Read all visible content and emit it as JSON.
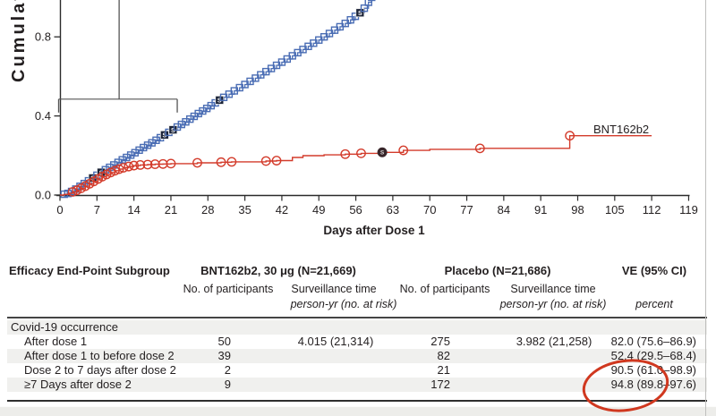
{
  "colors": {
    "placebo_blue": "#4a6db4",
    "placebo_blue_dark": "#2d4f92",
    "bnt_red": "#d33b2b",
    "annotation_red": "#d0381f",
    "severe_navy": "#1c2438",
    "severe_maroon": "#38262a",
    "stripe_gray": "#f0f0ee",
    "text_dark": "#231f20",
    "axis_dark": "#2b2b2b",
    "callout_gray": "#555555"
  },
  "chart_data": {
    "type": "line",
    "xlabel": "Days after Dose 1",
    "ylabel": "Cumulative Incidence (%)",
    "xlim": [
      0,
      119
    ],
    "ylim_visible": [
      0.0,
      0.98
    ],
    "x_ticks": [
      0,
      7,
      14,
      21,
      28,
      35,
      42,
      49,
      56,
      63,
      70,
      77,
      84,
      91,
      98,
      105,
      112,
      119
    ],
    "y_ticks": [
      0.0,
      0.4,
      0.8
    ],
    "grid": false,
    "legend_position": "inline-right",
    "severe_marker_symbol": "S",
    "inset_callout": {
      "x_range_days": [
        0,
        22.2
      ],
      "connector_day": 11.2,
      "bracket_value": 0.485
    },
    "series": [
      {
        "name": "Placebo",
        "marker": "square",
        "style": "step-after",
        "points": [
          [
            0.8,
            0.004
          ],
          [
            1.5,
            0.008
          ],
          [
            2.2,
            0.018
          ],
          [
            3.0,
            0.03
          ],
          [
            3.8,
            0.044
          ],
          [
            4.6,
            0.058
          ],
          [
            5.4,
            0.072
          ],
          [
            6.2,
            0.086,
            1
          ],
          [
            7.0,
            0.1
          ],
          [
            7.8,
            0.115,
            1
          ],
          [
            8.6,
            0.128
          ],
          [
            9.4,
            0.14
          ],
          [
            10.2,
            0.152
          ],
          [
            11.0,
            0.165
          ],
          [
            11.8,
            0.178
          ],
          [
            12.6,
            0.19
          ],
          [
            13.4,
            0.202
          ],
          [
            14.2,
            0.214
          ],
          [
            15.0,
            0.227
          ],
          [
            15.8,
            0.24
          ],
          [
            16.6,
            0.252
          ],
          [
            17.4,
            0.264
          ],
          [
            18.2,
            0.277
          ],
          [
            19.0,
            0.29
          ],
          [
            19.8,
            0.304,
            1
          ],
          [
            20.6,
            0.317
          ],
          [
            21.4,
            0.33,
            1
          ],
          [
            22.2,
            0.344
          ],
          [
            23.0,
            0.357
          ],
          [
            23.8,
            0.37
          ],
          [
            24.6,
            0.384
          ],
          [
            25.4,
            0.398
          ],
          [
            26.2,
            0.412
          ],
          [
            27.0,
            0.425
          ],
          [
            27.8,
            0.438
          ],
          [
            28.6,
            0.452
          ],
          [
            29.4,
            0.466
          ],
          [
            30.2,
            0.48,
            1
          ],
          [
            31.0,
            0.494
          ],
          [
            32.0,
            0.51
          ],
          [
            33.0,
            0.527
          ],
          [
            34.0,
            0.543
          ],
          [
            35.0,
            0.559
          ],
          [
            36.0,
            0.575
          ],
          [
            37.0,
            0.591
          ],
          [
            38.0,
            0.608
          ],
          [
            39.0,
            0.624
          ],
          [
            40.0,
            0.64
          ],
          [
            41.0,
            0.656
          ],
          [
            42.0,
            0.672
          ],
          [
            43.0,
            0.688
          ],
          [
            44.0,
            0.704
          ],
          [
            45.0,
            0.72
          ],
          [
            46.0,
            0.736
          ],
          [
            47.0,
            0.752
          ],
          [
            48.0,
            0.768
          ],
          [
            49.0,
            0.784
          ],
          [
            50.0,
            0.8
          ],
          [
            51.0,
            0.817
          ],
          [
            52.0,
            0.834
          ],
          [
            53.0,
            0.851
          ],
          [
            54.0,
            0.868
          ],
          [
            55.0,
            0.886
          ],
          [
            55.9,
            0.904
          ],
          [
            56.8,
            0.922,
            1
          ],
          [
            57.6,
            0.945
          ],
          [
            58.4,
            0.975
          ],
          [
            59.0,
            1.0
          ]
        ]
      },
      {
        "name": "BNT162b2",
        "label": "BNT162b2",
        "marker": "circle",
        "style": "step-after",
        "points": [
          [
            0,
            0
          ],
          [
            0.8,
            0.003
          ],
          [
            1.6,
            0.009
          ],
          [
            2.4,
            0.016,
            1
          ],
          [
            3.2,
            0.024,
            1
          ],
          [
            4.0,
            0.034,
            1
          ],
          [
            4.8,
            0.045,
            1
          ],
          [
            5.6,
            0.057,
            1
          ],
          [
            6.4,
            0.069,
            1
          ],
          [
            7.2,
            0.081,
            1
          ],
          [
            8.0,
            0.093,
            1
          ],
          [
            8.8,
            0.104,
            1
          ],
          [
            9.6,
            0.114,
            1
          ],
          [
            10.4,
            0.123,
            1
          ],
          [
            11.2,
            0.131,
            1
          ],
          [
            12.0,
            0.138,
            1
          ],
          [
            13.0,
            0.144,
            1
          ],
          [
            14.0,
            0.149,
            1
          ],
          [
            15.2,
            0.152,
            1
          ],
          [
            16.6,
            0.154,
            1
          ],
          [
            18.0,
            0.156,
            1
          ],
          [
            19.5,
            0.157,
            1
          ],
          [
            21.0,
            0.159,
            1
          ],
          [
            26.0,
            0.163,
            1
          ],
          [
            30.5,
            0.166,
            1
          ],
          [
            32.5,
            0.168,
            1
          ],
          [
            39.0,
            0.172,
            1
          ],
          [
            41.0,
            0.174,
            1
          ],
          [
            44.0,
            0.19
          ],
          [
            46.0,
            0.199
          ],
          [
            50.0,
            0.203
          ],
          [
            54.0,
            0.207,
            1
          ],
          [
            57.0,
            0.211,
            1
          ],
          [
            61.0,
            0.216,
            2
          ],
          [
            65.0,
            0.226,
            1
          ],
          [
            70.0,
            0.231
          ],
          [
            79.5,
            0.236,
            1
          ],
          [
            96.5,
            0.3,
            1
          ],
          [
            112,
            0.3
          ]
        ]
      }
    ]
  },
  "table": {
    "col_headers": {
      "subgroup": "Efficacy End-Point Subgroup",
      "bnt_group": "BNT162b2, 30 μg (N=21,669)",
      "placebo_group": "Placebo (N=21,686)",
      "ve": "VE (95% CI)",
      "participants": "No. of participants",
      "surveillance": "Surveillance time",
      "person_yr": "person-yr (no. at risk)",
      "percent": "percent"
    },
    "rows": [
      {
        "label": "Covid-19 occurrence",
        "indent": 0,
        "shaded": true,
        "bnt_n": "",
        "bnt_surv": "",
        "plc_n": "",
        "plc_surv": "",
        "ve": ""
      },
      {
        "label": "After dose 1",
        "indent": 1,
        "shaded": false,
        "bnt_n": "50",
        "bnt_surv": "4.015 (21,314)",
        "plc_n": "275",
        "plc_surv": "3.982 (21,258)",
        "ve": "82.0 (75.6–86.9)"
      },
      {
        "label": "After dose 1 to before dose 2",
        "indent": 1,
        "shaded": true,
        "bnt_n": "39",
        "bnt_surv": "",
        "plc_n": "82",
        "plc_surv": "",
        "ve": "52.4 (29.5–68.4)"
      },
      {
        "label": "Dose 2 to 7 days after dose 2",
        "indent": 1,
        "shaded": false,
        "bnt_n": "2",
        "bnt_surv": "",
        "plc_n": "21",
        "plc_surv": "",
        "ve": "90.5 (61.0–98.9)"
      },
      {
        "label": "≥7 Days after dose 2",
        "indent": 1,
        "shaded": true,
        "bnt_n": "9",
        "bnt_surv": "",
        "plc_n": "172",
        "plc_surv": "",
        "ve": "94.8 (89.8–97.6)"
      }
    ]
  },
  "annotation": {
    "shape": "hand-drawn ellipse",
    "values_circled": [
      "90.5 (61.0–98.9)",
      "94.8 (89.8–97.6)"
    ]
  }
}
